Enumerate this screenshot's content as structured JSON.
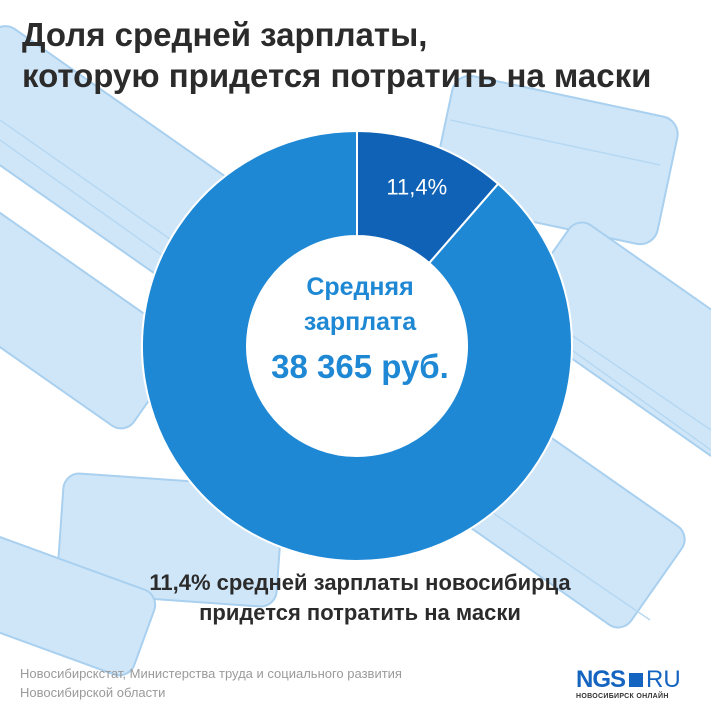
{
  "title_lines": [
    "Доля средней зарплаты,",
    "которую придется потратить на маски"
  ],
  "chart_data": {
    "type": "pie",
    "categories": [
      "11,4%",
      ""
    ],
    "values": [
      11.4,
      88.6
    ],
    "slice_labels": [
      "11,4%",
      ""
    ],
    "colors": [
      "#0f62b5",
      "#1e88d4"
    ],
    "center": {
      "label_lines": [
        "Средняя",
        "зарплата"
      ],
      "value": "38 365 руб."
    }
  },
  "caption_lines": [
    "11,4% средней зарплаты новосибирца",
    "придется потратить на маски"
  ],
  "source_lines": [
    "Новосибирскстат, Министерства труда и социального развития",
    "Новосибирской области"
  ],
  "logo": {
    "main": "NGS",
    "suffix": "RU",
    "sub": "НОВОСИБИРСК ОНЛАЙН"
  }
}
